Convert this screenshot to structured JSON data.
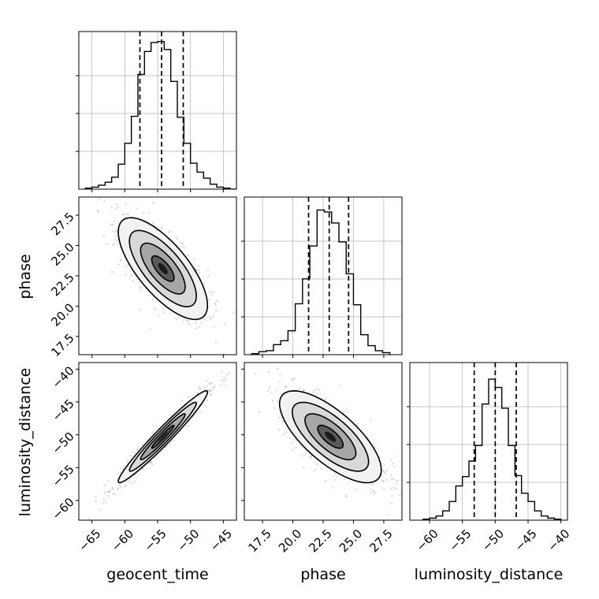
{
  "figure": {
    "background": "#ffffff",
    "point_color": "#6b6b6b",
    "line_color": "#000000",
    "grid_color": "#b0b0b0"
  },
  "chart_data": {
    "type": "corner",
    "parameters": [
      "geocent_time",
      "phase",
      "luminosity_distance"
    ],
    "axis_ranges": {
      "geocent_time": [
        -67,
        -43
      ],
      "phase": [
        16,
        29
      ],
      "luminosity_distance": [
        -63,
        -39
      ]
    },
    "ticks": {
      "geocent_time": [
        -65,
        -60,
        -55,
        -50,
        -45
      ],
      "phase": [
        17.5,
        20.0,
        22.5,
        25.0,
        27.5
      ],
      "luminosity_distance": [
        -60,
        -55,
        -50,
        -45,
        -40
      ]
    },
    "tick_labels": {
      "geocent_time": [
        "−65",
        "−60",
        "−55",
        "−50",
        "−45"
      ],
      "phase": [
        "17.5",
        "20.0",
        "22.5",
        "25.0",
        "27.5"
      ],
      "luminosity_distance": [
        "−60",
        "−55",
        "−50",
        "−45",
        "−40"
      ]
    },
    "axis_labels": {
      "x": [
        "geocent_time",
        "phase",
        "luminosity_distance"
      ],
      "y": [
        "phase",
        "luminosity_distance"
      ]
    },
    "histograms": [
      {
        "parameter": "geocent_time",
        "bin_edges": [
          -66,
          -65,
          -64,
          -63,
          -62,
          -61,
          -60,
          -59,
          -58,
          -57,
          -56,
          -55,
          -54,
          -53,
          -52,
          -51,
          -50,
          -49,
          -48,
          -47,
          -46,
          -45,
          -44,
          -43
        ],
        "counts": [
          1,
          2,
          4,
          7,
          12,
          25,
          46,
          73,
          115,
          138,
          147,
          148,
          140,
          108,
          72,
          46,
          26,
          17,
          11,
          5,
          2,
          1,
          0
        ],
        "quantiles": [
          -57.7,
          -54.4,
          -51.1
        ],
        "ylim": [
          0,
          158
        ]
      },
      {
        "parameter": "phase",
        "bin_edges": [
          16.6,
          17.2,
          17.8,
          18.4,
          19.0,
          19.6,
          20.2,
          20.8,
          21.4,
          22.0,
          22.6,
          23.2,
          23.8,
          24.4,
          25.0,
          25.6,
          26.2,
          26.8,
          27.4,
          28.0
        ],
        "counts": [
          1,
          3,
          4,
          10,
          14,
          24,
          51,
          76,
          109,
          145,
          143,
          132,
          113,
          81,
          50,
          20,
          9,
          4,
          2
        ],
        "quantiles": [
          21.3,
          23.0,
          24.6
        ],
        "ylim": [
          0,
          158
        ]
      },
      {
        "parameter": "luminosity_distance",
        "bin_edges": [
          -61,
          -60,
          -59,
          -58,
          -57,
          -56,
          -55,
          -54,
          -53,
          -52,
          -51,
          -50,
          -49,
          -48,
          -47,
          -46,
          -45,
          -44,
          -43,
          -42,
          -41,
          -40
        ],
        "counts": [
          1,
          2,
          4,
          9,
          18,
          33,
          42,
          57,
          72,
          112,
          136,
          128,
          108,
          72,
          43,
          26,
          18,
          9,
          4,
          2,
          1
        ],
        "quantiles": [
          -53.2,
          -50.0,
          -46.8
        ],
        "ylim": [
          0,
          152
        ]
      }
    ],
    "joint_2d": [
      {
        "x": "geocent_time",
        "y": "phase",
        "mean": [
          -54.2,
          23.1
        ],
        "sd": [
          3.4,
          2.1
        ],
        "correlation": -0.72
      },
      {
        "x": "geocent_time",
        "y": "luminosity_distance",
        "mean": [
          -54.2,
          -50.3
        ],
        "sd": [
          3.4,
          3.5
        ],
        "correlation": 0.97
      },
      {
        "x": "phase",
        "y": "luminosity_distance",
        "mean": [
          23.1,
          -50.3
        ],
        "sd": [
          2.1,
          3.5
        ],
        "correlation": -0.72
      }
    ],
    "contour_levels_sigma": [
      0.5,
      1.0,
      1.5,
      2.0
    ],
    "grid": true
  }
}
